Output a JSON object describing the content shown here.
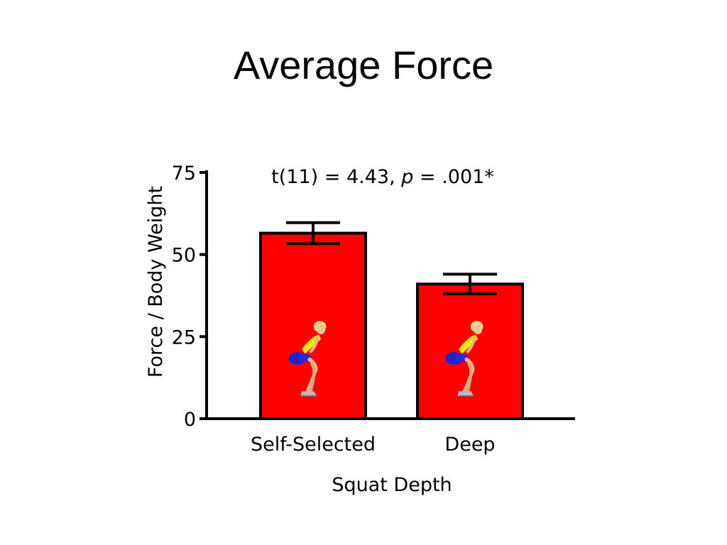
{
  "slide": {
    "title": "Average Force"
  },
  "chart_data": {
    "type": "bar",
    "title": "Average Force",
    "annotation": {
      "prefix": "t(11) = 4.43, ",
      "p_symbol": "p",
      "suffix": " = .001*"
    },
    "categories": [
      "Self-Selected",
      "Deep"
    ],
    "values": [
      56.5,
      41
    ],
    "errors": [
      3.2,
      3.0
    ],
    "xlabel": "Squat Depth",
    "ylabel": "Force / Body Weight",
    "ylim": [
      0,
      75
    ],
    "yticks": [
      0,
      25,
      50,
      75
    ],
    "ytick_labels": [
      "0",
      "25",
      "50",
      "75"
    ],
    "grid": false,
    "legend": "none",
    "bar_color": "#ff0000",
    "bar_edge_color": "#000000",
    "icons": [
      "squat-figure-icon",
      "squat-figure-icon"
    ]
  }
}
